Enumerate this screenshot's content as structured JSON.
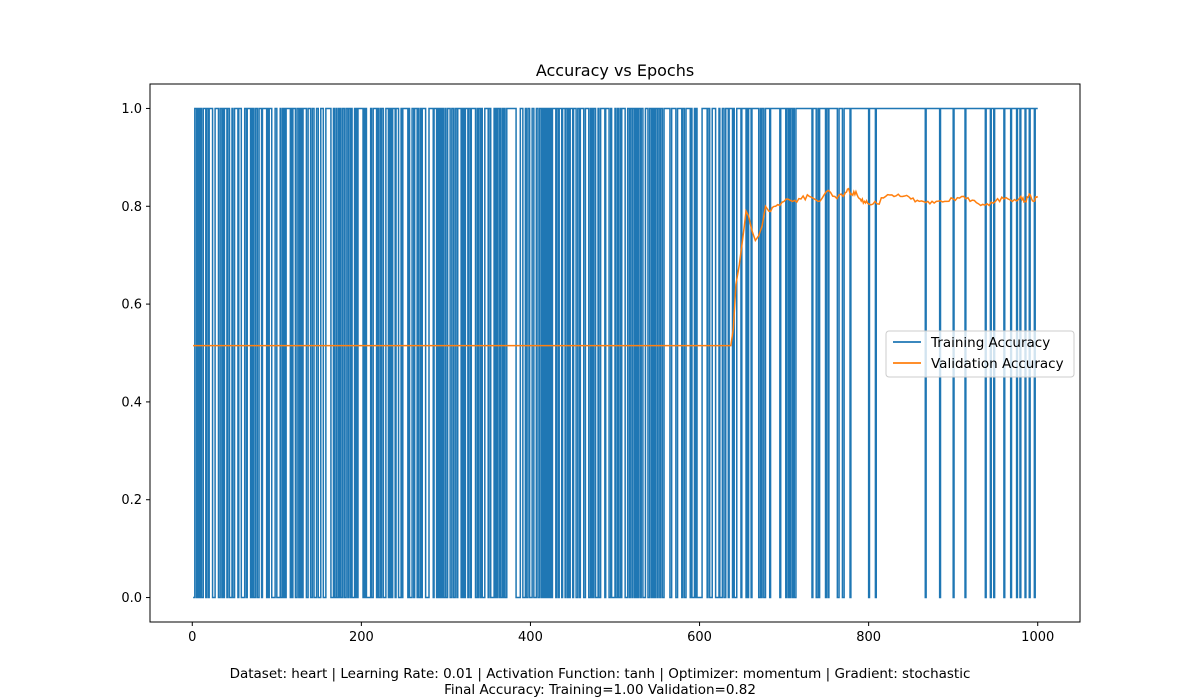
{
  "chart_data": {
    "type": "line",
    "title": "Accuracy vs Epochs",
    "xlabel": "",
    "ylabel": "",
    "xlim": [
      -50,
      1050
    ],
    "ylim": [
      -0.05,
      1.05
    ],
    "x_ticks": [
      0,
      200,
      400,
      600,
      800,
      1000
    ],
    "x_tick_labels": [
      "0",
      "200",
      "400",
      "600",
      "800",
      "1000"
    ],
    "y_ticks": [
      0.0,
      0.2,
      0.4,
      0.6,
      0.8,
      1.0
    ],
    "y_tick_labels": [
      "0.0",
      "0.2",
      "0.4",
      "0.6",
      "0.8",
      "1.0"
    ],
    "grid": false,
    "legend_position": "center-right",
    "series": [
      {
        "name": "Training Accuracy",
        "color": "#1f77b4",
        "description_of_values": "per-epoch accuracy on a single stochastic sample; each value is either 0 or 1",
        "segments": [
          {
            "x_start": 1,
            "x_end": 640,
            "pattern": "alternating",
            "fraction_ones": 0.55
          },
          {
            "x_start": 640,
            "x_end": 780,
            "pattern": "alternating",
            "fraction_ones": 0.8
          },
          {
            "x_start": 780,
            "x_end": 1000,
            "pattern": "mostly_one",
            "zero_epochs": [
              800,
              808,
              867,
              884,
              900,
              914,
              938,
              944,
              948,
              960,
              968,
              975,
              979,
              985,
              990,
              996
            ]
          }
        ],
        "final_value": 1.0
      },
      {
        "name": "Validation Accuracy",
        "color": "#ff7f0e",
        "points": [
          [
            1,
            0.515
          ],
          [
            100,
            0.515
          ],
          [
            200,
            0.515
          ],
          [
            300,
            0.515
          ],
          [
            400,
            0.515
          ],
          [
            500,
            0.515
          ],
          [
            600,
            0.515
          ],
          [
            637,
            0.515
          ],
          [
            640,
            0.55
          ],
          [
            643,
            0.64
          ],
          [
            647,
            0.68
          ],
          [
            650,
            0.72
          ],
          [
            653,
            0.76
          ],
          [
            655,
            0.79
          ],
          [
            658,
            0.78
          ],
          [
            662,
            0.75
          ],
          [
            666,
            0.73
          ],
          [
            670,
            0.74
          ],
          [
            674,
            0.76
          ],
          [
            678,
            0.8
          ],
          [
            682,
            0.79
          ],
          [
            690,
            0.8
          ],
          [
            700,
            0.81
          ],
          [
            710,
            0.81
          ],
          [
            720,
            0.815
          ],
          [
            730,
            0.82
          ],
          [
            740,
            0.81
          ],
          [
            750,
            0.83
          ],
          [
            760,
            0.82
          ],
          [
            770,
            0.82
          ],
          [
            775,
            0.835
          ],
          [
            780,
            0.825
          ],
          [
            785,
            0.83
          ],
          [
            790,
            0.815
          ],
          [
            795,
            0.81
          ],
          [
            800,
            0.805
          ],
          [
            810,
            0.805
          ],
          [
            820,
            0.82
          ],
          [
            830,
            0.82
          ],
          [
            840,
            0.82
          ],
          [
            850,
            0.815
          ],
          [
            860,
            0.81
          ],
          [
            870,
            0.81
          ],
          [
            880,
            0.81
          ],
          [
            890,
            0.81
          ],
          [
            900,
            0.815
          ],
          [
            910,
            0.82
          ],
          [
            920,
            0.81
          ],
          [
            930,
            0.805
          ],
          [
            940,
            0.805
          ],
          [
            950,
            0.81
          ],
          [
            960,
            0.815
          ],
          [
            970,
            0.81
          ],
          [
            980,
            0.82
          ],
          [
            985,
            0.81
          ],
          [
            990,
            0.825
          ],
          [
            995,
            0.81
          ],
          [
            1000,
            0.82
          ]
        ],
        "final_value": 0.82
      }
    ]
  },
  "caption": {
    "line1": "Dataset: heart | Learning Rate: 0.01 | Activation Function: tanh | Optimizer: momentum | Gradient: stochastic",
    "line2": "Final Accuracy: Training=1.00 Validation=0.82"
  }
}
